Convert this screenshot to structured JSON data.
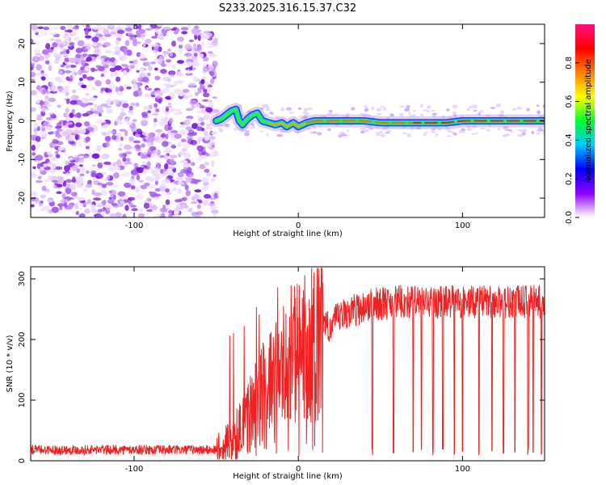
{
  "title": "S233.2025.316.15.37.C32",
  "chart_data": [
    {
      "type": "heatmap",
      "name": "spectrogram",
      "xlabel": "Height of straight line (km)",
      "ylabel": "Frequency (Hz)",
      "xlim": [
        -163,
        150
      ],
      "ylim": [
        -25,
        25
      ],
      "xticks": [
        -100,
        0,
        100
      ],
      "yticks": [
        -20,
        -10,
        0,
        10,
        20
      ],
      "noise_region_end_km": -50,
      "ridge": [
        {
          "x": -50,
          "f": 0.0
        },
        {
          "x": -47,
          "f": 0.5
        },
        {
          "x": -44,
          "f": 1.5
        },
        {
          "x": -41,
          "f": 2.5
        },
        {
          "x": -38,
          "f": 3.0
        },
        {
          "x": -36,
          "f": 0.0
        },
        {
          "x": -34,
          "f": -1.0
        },
        {
          "x": -31,
          "f": 0.5
        },
        {
          "x": -28,
          "f": 1.5
        },
        {
          "x": -25,
          "f": 2.0
        },
        {
          "x": -22,
          "f": 0.0
        },
        {
          "x": -18,
          "f": -0.5
        },
        {
          "x": -14,
          "f": -1.0
        },
        {
          "x": -10,
          "f": -0.5
        },
        {
          "x": -7,
          "f": -1.5
        },
        {
          "x": -3,
          "f": -0.5
        },
        {
          "x": 0,
          "f": -1.5
        },
        {
          "x": 5,
          "f": -0.5
        },
        {
          "x": 10,
          "f": 0.0
        },
        {
          "x": 20,
          "f": 0.0
        },
        {
          "x": 30,
          "f": 0.0
        },
        {
          "x": 40,
          "f": 0.0
        },
        {
          "x": 50,
          "f": -0.5
        },
        {
          "x": 60,
          "f": -0.5
        },
        {
          "x": 70,
          "f": -0.5
        },
        {
          "x": 80,
          "f": -0.5
        },
        {
          "x": 90,
          "f": -0.5
        },
        {
          "x": 100,
          "f": 0.0
        },
        {
          "x": 110,
          "f": 0.0
        },
        {
          "x": 120,
          "f": 0.0
        },
        {
          "x": 130,
          "f": 0.0
        },
        {
          "x": 140,
          "f": 0.0
        },
        {
          "x": 150,
          "f": 0.0
        }
      ]
    },
    {
      "type": "colorbar",
      "label": "Normalized spectral amplitude",
      "ticks": [
        "0.0",
        "0.2",
        "0.4",
        "0.6",
        "0.8"
      ],
      "tick_values": [
        0.0,
        0.2,
        0.4,
        0.6,
        0.8
      ],
      "range": [
        0,
        1
      ],
      "stops": [
        "#ffffff",
        "#8f00ff",
        "#0000ff",
        "#00c8ff",
        "#00ff30",
        "#ffff00",
        "#ff8000",
        "#ff0000",
        "#ff1080"
      ]
    },
    {
      "type": "line",
      "name": "snr",
      "xlabel": "Height of straight line (km)",
      "ylabel": "SNR (10 * v/v)",
      "xlim": [
        -163,
        150
      ],
      "ylim": [
        0,
        320
      ],
      "xticks": [
        -100,
        0,
        100
      ],
      "yticks": [
        0,
        100,
        200,
        300
      ],
      "color": "#ee2222",
      "profile": [
        {
          "x": -163,
          "y": 18
        },
        {
          "x": -50,
          "y": 18
        },
        {
          "x": -40,
          "y": 30
        },
        {
          "x": -30,
          "y": 80
        },
        {
          "x": -20,
          "y": 120
        },
        {
          "x": -10,
          "y": 150
        },
        {
          "x": 0,
          "y": 175
        },
        {
          "x": 10,
          "y": 200
        },
        {
          "x": 20,
          "y": 225
        },
        {
          "x": 30,
          "y": 245
        },
        {
          "x": 45,
          "y": 258
        },
        {
          "x": 60,
          "y": 262
        },
        {
          "x": 150,
          "y": 262
        }
      ],
      "dropouts_km": [
        45,
        58,
        70,
        75,
        82,
        88,
        95,
        100,
        110,
        118,
        125,
        132,
        140,
        143,
        148
      ]
    }
  ]
}
